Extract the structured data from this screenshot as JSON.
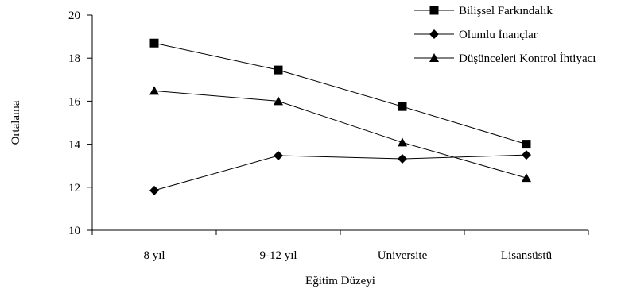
{
  "chart_data": {
    "type": "line",
    "categories": [
      "8 yıl",
      "9-12 yıl",
      "Universite",
      "Lisansüstü"
    ],
    "series": [
      {
        "name": "Bilişsel Farkındalık",
        "marker": "square",
        "values": [
          18.7,
          17.45,
          15.75,
          14.0
        ]
      },
      {
        "name": "Olumlu İnançlar",
        "marker": "diamond",
        "values": [
          11.85,
          13.47,
          13.32,
          13.5
        ]
      },
      {
        "name": "Düşünceleri Kontrol İhtiyacı",
        "marker": "triangle",
        "values": [
          16.48,
          16.0,
          14.08,
          12.43
        ]
      }
    ],
    "xlabel": "Eğitim Düzeyi",
    "ylabel": "Ortalama",
    "ylim": [
      10,
      20
    ],
    "yticks": [
      10,
      12,
      14,
      16,
      18,
      20
    ],
    "grid": false,
    "legend": "top-right",
    "color": "#000000"
  }
}
